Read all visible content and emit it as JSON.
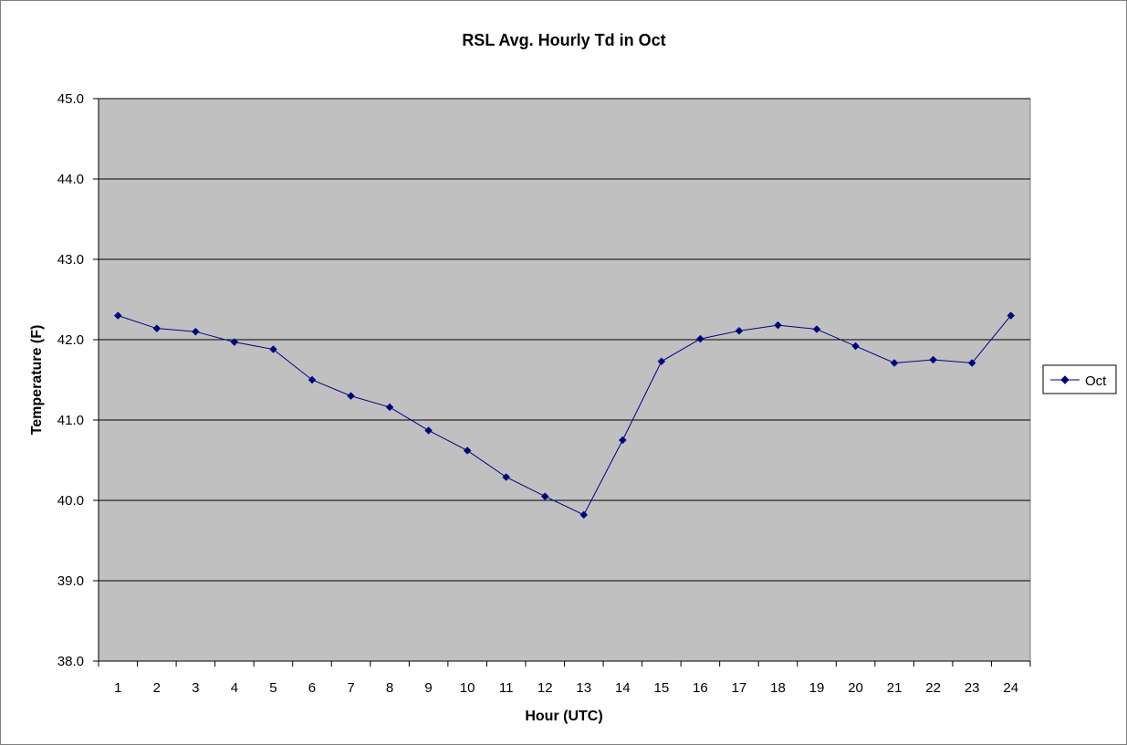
{
  "chart_data": {
    "type": "line",
    "title": "RSL Avg. Hourly Td in Oct",
    "xlabel": "Hour (UTC)",
    "ylabel": "Temperature (F)",
    "categories": [
      "1",
      "2",
      "3",
      "4",
      "5",
      "6",
      "7",
      "8",
      "9",
      "10",
      "11",
      "12",
      "13",
      "14",
      "15",
      "16",
      "17",
      "18",
      "19",
      "20",
      "21",
      "22",
      "23",
      "24"
    ],
    "series": [
      {
        "name": "Oct",
        "values": [
          42.3,
          42.14,
          42.1,
          41.97,
          41.88,
          41.5,
          41.3,
          41.16,
          40.87,
          40.62,
          40.29,
          40.05,
          39.82,
          40.75,
          41.73,
          42.01,
          42.11,
          42.18,
          42.13,
          41.92,
          41.71,
          41.75,
          41.71,
          42.3
        ]
      }
    ],
    "ylim": [
      38.0,
      45.0
    ],
    "yticks": [
      "38.0",
      "39.0",
      "40.0",
      "41.0",
      "42.0",
      "43.0",
      "44.0",
      "45.0"
    ],
    "grid": true,
    "legend_position": "right",
    "colors": {
      "plot_background": "#c0c0c0",
      "series": "#000080",
      "gridline": "#000000"
    },
    "marker": "diamond"
  }
}
